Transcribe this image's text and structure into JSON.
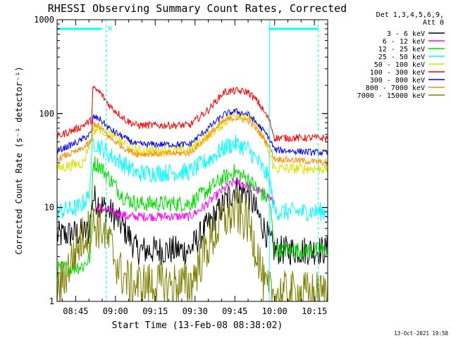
{
  "chart_data": {
    "type": "line",
    "title": "RHESSI Observing Summary Count Rates, Corrected",
    "xlabel": "Start Time (13-Feb-08 08:38:02)",
    "ylabel": "Corrected Count Rate (s⁻¹ detector⁻¹)",
    "yscale": "log",
    "ylim": [
      1,
      1000
    ],
    "xlim_min": [
      0,
      102
    ],
    "x_unit": "minutes after 08:38",
    "x_ticks": [
      {
        "min": 7,
        "label": "08:45"
      },
      {
        "min": 22,
        "label": "09:00"
      },
      {
        "min": 37,
        "label": "09:15"
      },
      {
        "min": 52,
        "label": "09:30"
      },
      {
        "min": 67,
        "label": "09:45"
      },
      {
        "min": 82,
        "label": "10:00"
      },
      {
        "min": 97,
        "label": "10:15"
      }
    ],
    "y_ticks": [
      {
        "value": 1,
        "label": "1"
      },
      {
        "value": 10,
        "label": "10"
      },
      {
        "value": 100,
        "label": "100"
      },
      {
        "value": 1000,
        "label": "1000"
      }
    ],
    "legend_header": [
      "Det 1,3,4,5,6,9,",
      "Att 0"
    ],
    "legend_placement": "right",
    "night_bar_label": "N",
    "vlines_min": [
      0,
      18.5,
      80,
      98.5
    ],
    "series": [
      {
        "name": "3 - 6 keV",
        "color": "#000000",
        "noise": 0.16,
        "points": [
          [
            0,
            5
          ],
          [
            12,
            5.5
          ],
          [
            13.5,
            13
          ],
          [
            16,
            11
          ],
          [
            22,
            8
          ],
          [
            27,
            5
          ],
          [
            30,
            3.5
          ],
          [
            50,
            3.5
          ],
          [
            55,
            5.5
          ],
          [
            62,
            10
          ],
          [
            67,
            16
          ],
          [
            72,
            14
          ],
          [
            76,
            8
          ],
          [
            80,
            4.5
          ],
          [
            82,
            3.5
          ],
          [
            102,
            3.5
          ]
        ]
      },
      {
        "name": "6 - 12 keV",
        "color": "#ff00ff",
        "noise": 0.05,
        "points": [
          [
            13.5,
            9
          ],
          [
            16,
            10
          ],
          [
            20,
            9.2
          ],
          [
            27,
            8
          ],
          [
            50,
            8
          ],
          [
            55,
            10
          ],
          [
            62,
            15
          ],
          [
            67,
            19
          ],
          [
            72,
            17
          ],
          [
            76,
            15
          ],
          [
            80,
            13
          ],
          [
            82,
            11
          ]
        ]
      },
      {
        "name": "12 - 25 keV",
        "color": "#00dd00",
        "noise": 0.09,
        "points": [
          [
            0,
            2.2
          ],
          [
            10,
            2.4
          ],
          [
            12.5,
            3
          ],
          [
            13.5,
            30
          ],
          [
            16,
            28
          ],
          [
            20,
            20
          ],
          [
            25,
            13
          ],
          [
            30,
            11
          ],
          [
            50,
            11
          ],
          [
            55,
            14
          ],
          [
            62,
            20
          ],
          [
            67,
            24
          ],
          [
            72,
            20
          ],
          [
            76,
            15
          ],
          [
            80,
            12
          ],
          [
            82,
            3.5
          ],
          [
            102,
            3.5
          ]
        ]
      },
      {
        "name": "25 - 50 keV",
        "color": "#00ffff",
        "noise": 0.1,
        "points": [
          [
            0,
            9
          ],
          [
            8,
            10
          ],
          [
            12,
            13
          ],
          [
            13.5,
            50
          ],
          [
            16,
            45
          ],
          [
            20,
            36
          ],
          [
            26,
            28
          ],
          [
            30,
            23
          ],
          [
            50,
            24
          ],
          [
            57,
            32
          ],
          [
            64,
            45
          ],
          [
            67,
            48
          ],
          [
            72,
            42
          ],
          [
            76,
            30
          ],
          [
            80,
            20
          ],
          [
            82,
            9
          ],
          [
            102,
            9
          ]
        ]
      },
      {
        "name": "50 - 100 keV",
        "color": "#dddd00",
        "noise": 0.06,
        "points": [
          [
            0,
            26
          ],
          [
            10,
            30
          ],
          [
            13.5,
            65
          ],
          [
            16,
            70
          ],
          [
            20,
            60
          ],
          [
            26,
            47
          ],
          [
            30,
            40
          ],
          [
            50,
            41
          ],
          [
            57,
            58
          ],
          [
            64,
            85
          ],
          [
            67,
            100
          ],
          [
            72,
            95
          ],
          [
            76,
            70
          ],
          [
            80,
            38
          ],
          [
            82,
            26
          ],
          [
            102,
            26
          ]
        ]
      },
      {
        "name": "100 - 300 keV",
        "color": "#ff0000",
        "noise": 0.04,
        "points": [
          [
            0,
            57
          ],
          [
            8,
            70
          ],
          [
            13,
            85
          ],
          [
            13.5,
            185
          ],
          [
            16,
            170
          ],
          [
            20,
            120
          ],
          [
            26,
            85
          ],
          [
            30,
            75
          ],
          [
            50,
            75
          ],
          [
            57,
            110
          ],
          [
            63,
            170
          ],
          [
            67,
            175
          ],
          [
            72,
            170
          ],
          [
            76,
            130
          ],
          [
            80,
            85
          ],
          [
            82,
            55
          ],
          [
            102,
            55
          ]
        ]
      },
      {
        "name": "300 - 800 keV",
        "color": "#0000ff",
        "noise": 0.035,
        "points": [
          [
            0,
            40
          ],
          [
            8,
            50
          ],
          [
            13,
            62
          ],
          [
            13.5,
            92
          ],
          [
            16,
            88
          ],
          [
            20,
            68
          ],
          [
            26,
            54
          ],
          [
            30,
            47
          ],
          [
            50,
            47
          ],
          [
            57,
            70
          ],
          [
            63,
            98
          ],
          [
            67,
            106
          ],
          [
            72,
            98
          ],
          [
            76,
            75
          ],
          [
            80,
            55
          ],
          [
            82,
            41
          ],
          [
            102,
            38
          ]
        ]
      },
      {
        "name": "800 - 7000 keV",
        "color": "#ff8800",
        "noise": 0.035,
        "points": [
          [
            0,
            33
          ],
          [
            8,
            40
          ],
          [
            13,
            50
          ],
          [
            13.5,
            80
          ],
          [
            16,
            72
          ],
          [
            20,
            55
          ],
          [
            26,
            42
          ],
          [
            30,
            37
          ],
          [
            50,
            38
          ],
          [
            57,
            58
          ],
          [
            63,
            84
          ],
          [
            67,
            90
          ],
          [
            72,
            85
          ],
          [
            76,
            64
          ],
          [
            80,
            45
          ],
          [
            82,
            33
          ],
          [
            102,
            30
          ]
        ]
      },
      {
        "name": "7000 - 15000 keV",
        "color": "#808000",
        "noise": 0.25,
        "points": [
          [
            0,
            1.2
          ],
          [
            6,
            3
          ],
          [
            10,
            5
          ],
          [
            14,
            6.5
          ],
          [
            17,
            6
          ],
          [
            20,
            4
          ],
          [
            24,
            2
          ],
          [
            28,
            1.5
          ],
          [
            50,
            1.5
          ],
          [
            56,
            3.5
          ],
          [
            62,
            7
          ],
          [
            67,
            9
          ],
          [
            72,
            7
          ],
          [
            76,
            3
          ],
          [
            78,
            1.4
          ],
          [
            80,
            1.2
          ],
          [
            102,
            1.2
          ]
        ]
      }
    ]
  },
  "footer_date": "13-Oct-2021 19:58"
}
